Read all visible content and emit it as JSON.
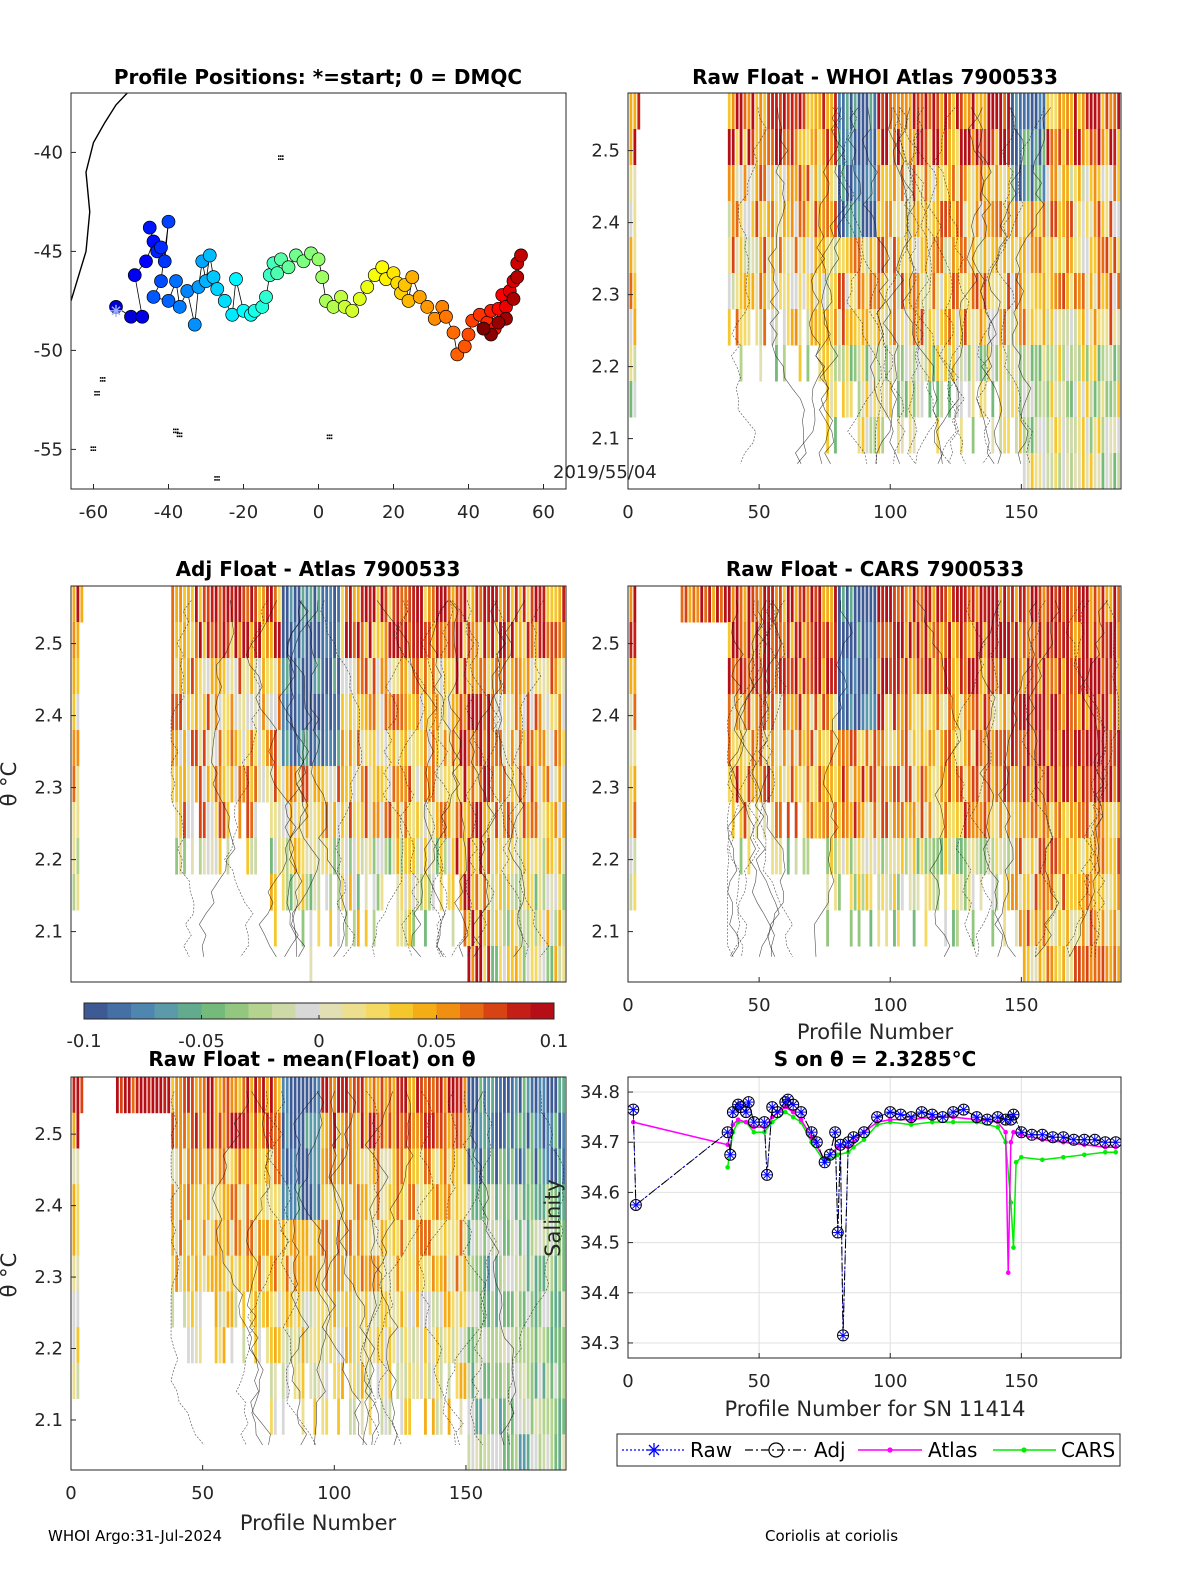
{
  "footer": {
    "left": "WHOI Argo:31-Jul-2024",
    "right": "Coriolis at coriolis"
  },
  "colorbar": {
    "ticks": [
      "-0.1",
      "-0.05",
      "0",
      "0.05",
      "0.1"
    ],
    "colors": [
      "#3e5a94",
      "#4570a6",
      "#4f86b0",
      "#5a9aa9",
      "#62ab8e",
      "#74ba7a",
      "#93c77f",
      "#b4d38f",
      "#cddaa8",
      "#d8d8d8",
      "#e3dfb4",
      "#ece08e",
      "#f4d962",
      "#f6c62d",
      "#f5ad16",
      "#f08f12",
      "#e66a12",
      "#d84314",
      "#c41f17",
      "#b50e16"
    ]
  },
  "chart_data": [
    {
      "type": "scatter",
      "title": "Profile Positions: *=start; 0 = DMQC",
      "annotation": "2019/55/04",
      "xlim": [
        -66,
        66
      ],
      "ylim": [
        -57,
        -37
      ],
      "xticks": [
        "-60",
        "-40",
        "-20",
        "0",
        "20",
        "40",
        "60"
      ],
      "yticks": [
        "-40",
        "-45",
        "-50",
        "-55"
      ],
      "start_marker": [
        -54,
        -48
      ],
      "points": [
        [
          -54,
          -47.8
        ],
        [
          -50,
          -48.3
        ],
        [
          -47,
          -48.3
        ],
        [
          -49,
          -46.2
        ],
        [
          -46,
          -45.5
        ],
        [
          -44,
          -44.5
        ],
        [
          -45,
          -43.8
        ],
        [
          -43,
          -45
        ],
        [
          -42,
          -44.8
        ],
        [
          -41,
          -45.5
        ],
        [
          -40,
          -43.5
        ],
        [
          -42,
          -46.5
        ],
        [
          -44,
          -47.3
        ],
        [
          -40,
          -47.5
        ],
        [
          -38,
          -46.5
        ],
        [
          -37,
          -47.8
        ],
        [
          -35,
          -47
        ],
        [
          -33,
          -48.7
        ],
        [
          -32,
          -46.8
        ],
        [
          -31,
          -45.5
        ],
        [
          -30,
          -46.5
        ],
        [
          -29,
          -45.2
        ],
        [
          -28,
          -46.3
        ],
        [
          -27,
          -46.9
        ],
        [
          -25,
          -47.5
        ],
        [
          -23,
          -48.2
        ],
        [
          -22,
          -46.4
        ],
        [
          -20,
          -48
        ],
        [
          -18,
          -48.2
        ],
        [
          -17,
          -48
        ],
        [
          -15,
          -47.8
        ],
        [
          -14,
          -47.3
        ],
        [
          -13,
          -46.2
        ],
        [
          -12,
          -45.6
        ],
        [
          -11,
          -46.1
        ],
        [
          -10,
          -45.4
        ],
        [
          -8,
          -45.8
        ],
        [
          -6,
          -45.2
        ],
        [
          -4,
          -45.5
        ],
        [
          -2,
          -45.1
        ],
        [
          0,
          -45.4
        ],
        [
          1,
          -46.3
        ],
        [
          2,
          -47.5
        ],
        [
          4,
          -47.8
        ],
        [
          6,
          -47.3
        ],
        [
          7,
          -47.8
        ],
        [
          9,
          -48
        ],
        [
          11,
          -47.4
        ],
        [
          13,
          -46.8
        ],
        [
          15,
          -46.2
        ],
        [
          17,
          -45.8
        ],
        [
          18,
          -46.4
        ],
        [
          20,
          -46.1
        ],
        [
          21,
          -46.6
        ],
        [
          22,
          -47.1
        ],
        [
          23,
          -46.7
        ],
        [
          24,
          -47.5
        ],
        [
          25,
          -46.3
        ],
        [
          27,
          -47.3
        ],
        [
          29,
          -47.8
        ],
        [
          31,
          -48.4
        ],
        [
          33,
          -47.8
        ],
        [
          34,
          -48.3
        ],
        [
          36,
          -49.1
        ],
        [
          37,
          -50.2
        ],
        [
          39,
          -49.8
        ],
        [
          40,
          -49.2
        ],
        [
          41,
          -48.5
        ],
        [
          43,
          -48.2
        ],
        [
          45,
          -48.6
        ],
        [
          46,
          -48
        ],
        [
          47,
          -48.9
        ],
        [
          48,
          -47.9
        ],
        [
          49,
          -47.2
        ],
        [
          50,
          -47.8
        ],
        [
          51,
          -47
        ],
        [
          52,
          -46.5
        ],
        [
          53,
          -45.6
        ],
        [
          54,
          -45.2
        ],
        [
          53,
          -46.3
        ],
        [
          52,
          -47.4
        ],
        [
          50,
          -48.4
        ],
        [
          48,
          -48.6
        ],
        [
          46,
          -49.2
        ],
        [
          44,
          -48.9
        ]
      ],
      "coast_islands": [
        [
          -57.5,
          -51.5
        ],
        [
          -59,
          -52.2
        ],
        [
          -37,
          -54.3
        ],
        [
          -38,
          -54.1
        ],
        [
          -27,
          -56.5
        ],
        [
          -60,
          -55
        ],
        [
          3,
          -54.4
        ],
        [
          -10,
          -40.3
        ]
      ]
    },
    {
      "type": "heatmap",
      "title": "Raw Float - WHOI Atlas  7900533",
      "xlim": [
        0,
        188
      ],
      "ylim": [
        2.03,
        2.58
      ],
      "xticks": [
        "0",
        "50",
        "100",
        "150"
      ],
      "yticks": [
        "2.5",
        "2.4",
        "2.3",
        "2.2",
        "2.1"
      ],
      "seed": 11
    },
    {
      "type": "heatmap",
      "title": "Adj Float - Atlas  7900533",
      "ylabel": "θ °C",
      "xlim": [
        0,
        188
      ],
      "ylim": [
        2.03,
        2.58
      ],
      "yticks": [
        "2.5",
        "2.4",
        "2.3",
        "2.2",
        "2.1"
      ],
      "seed": 23
    },
    {
      "type": "heatmap",
      "title": "Raw Float - CARS  7900533",
      "xlabel": "Profile Number",
      "xlim": [
        0,
        188
      ],
      "ylim": [
        2.03,
        2.58
      ],
      "xticks": [
        "0",
        "50",
        "100",
        "150"
      ],
      "yticks": [
        "2.5",
        "2.4",
        "2.3",
        "2.2",
        "2.1"
      ],
      "seed": 37
    },
    {
      "type": "heatmap",
      "title": "Raw Float - mean(Float) on θ",
      "xlabel": "Profile Number",
      "ylabel": "θ °C",
      "xlim": [
        0,
        188
      ],
      "ylim": [
        2.03,
        2.58
      ],
      "xticks": [
        "0",
        "50",
        "100",
        "150"
      ],
      "yticks": [
        "2.5",
        "2.4",
        "2.3",
        "2.2",
        "2.1"
      ],
      "seed": 53
    },
    {
      "type": "line",
      "title": "S on θ = 2.3285°C",
      "xlabel": "Profile Number for SN 11414",
      "ylabel": "Salinity",
      "xlim": [
        0,
        188
      ],
      "ylim": [
        34.27,
        34.83
      ],
      "xticks": [
        "0",
        "50",
        "100",
        "150"
      ],
      "yticks": [
        "34.8",
        "34.7",
        "34.6",
        "34.5",
        "34.4",
        "34.3"
      ],
      "grid": true,
      "legend": [
        "Raw",
        "Adj",
        "Atlas",
        "CARS"
      ],
      "series": [
        {
          "name": "Adj",
          "x": [
            2,
            3,
            38,
            39,
            40,
            42,
            43,
            45,
            46,
            48,
            52,
            53,
            55,
            57,
            60,
            61,
            63,
            66,
            70,
            72,
            75,
            77,
            79,
            80,
            81,
            82,
            84,
            86,
            90,
            95,
            100,
            104,
            108,
            112,
            116,
            120,
            124,
            128,
            133,
            137,
            141,
            144,
            146,
            147,
            150,
            154,
            158,
            162,
            166,
            170,
            174,
            178,
            182,
            186
          ],
          "y": [
            34.765,
            34.575,
            34.72,
            34.675,
            34.76,
            34.775,
            34.77,
            34.76,
            34.78,
            34.74,
            34.74,
            34.635,
            34.77,
            34.76,
            34.78,
            34.785,
            34.775,
            34.76,
            34.72,
            34.7,
            34.66,
            34.675,
            34.72,
            34.52,
            34.695,
            34.315,
            34.7,
            34.71,
            34.72,
            34.75,
            34.76,
            34.755,
            34.75,
            34.76,
            34.755,
            34.75,
            34.76,
            34.765,
            34.75,
            34.745,
            34.75,
            34.745,
            34.745,
            34.755,
            34.72,
            34.715,
            34.715,
            34.71,
            34.71,
            34.705,
            34.705,
            34.705,
            34.7,
            34.7
          ]
        },
        {
          "name": "Atlas",
          "x": [
            2,
            38,
            40,
            42,
            45,
            48,
            52,
            55,
            60,
            63,
            66,
            70,
            75,
            80,
            84,
            86,
            90,
            95,
            100,
            108,
            116,
            124,
            133,
            141,
            144,
            145,
            146,
            147,
            150,
            158,
            166,
            174,
            182,
            186
          ],
          "y": [
            34.74,
            34.695,
            34.735,
            34.745,
            34.74,
            34.73,
            34.73,
            34.75,
            34.77,
            34.76,
            34.745,
            34.71,
            34.665,
            34.69,
            34.69,
            34.7,
            34.72,
            34.74,
            34.745,
            34.745,
            34.75,
            34.75,
            34.745,
            34.74,
            34.72,
            34.44,
            34.7,
            34.72,
            34.715,
            34.705,
            34.7,
            34.695,
            34.69,
            34.69
          ]
        },
        {
          "name": "CARS",
          "x": [
            38,
            40,
            42,
            45,
            48,
            52,
            55,
            60,
            63,
            66,
            70,
            75,
            80,
            84,
            86,
            90,
            95,
            100,
            108,
            116,
            124,
            133,
            141,
            144,
            146,
            147,
            148,
            150,
            158,
            166,
            174,
            182,
            186
          ],
          "y": [
            34.65,
            34.72,
            34.74,
            34.74,
            34.72,
            34.72,
            34.74,
            34.76,
            34.75,
            34.74,
            34.7,
            34.66,
            34.675,
            34.68,
            34.69,
            34.705,
            34.735,
            34.74,
            34.735,
            34.74,
            34.74,
            34.74,
            34.73,
            34.7,
            34.58,
            34.49,
            34.66,
            34.67,
            34.665,
            34.67,
            34.675,
            34.68,
            34.68
          ]
        }
      ]
    }
  ]
}
